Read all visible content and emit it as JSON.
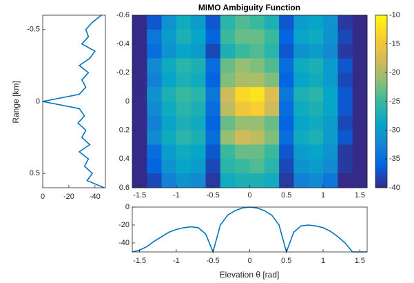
{
  "chart_data": [
    {
      "type": "heatmap",
      "title": "MIMO Ambiguity Function",
      "colormap": "parula",
      "x": [
        -1.5,
        -1.3,
        -1.1,
        -0.9,
        -0.7,
        -0.5,
        -0.3,
        -0.1,
        0.1,
        0.3,
        0.5,
        0.7,
        0.9,
        1.1,
        1.3,
        1.5
      ],
      "y": [
        -0.55,
        -0.45,
        -0.35,
        -0.25,
        -0.15,
        -0.05,
        0.05,
        0.15,
        0.25,
        0.35,
        0.45,
        0.55
      ],
      "z": [
        [
          -40,
          -37,
          -31,
          -28,
          -30,
          -37,
          -26,
          -24,
          -25,
          -27,
          -37,
          -30,
          -29,
          -31,
          -39,
          -40
        ],
        [
          -40,
          -34,
          -30,
          -27,
          -29,
          -36,
          -25,
          -23,
          -23,
          -25,
          -36,
          -29,
          -28,
          -31,
          -38,
          -40
        ],
        [
          -40,
          -35,
          -31,
          -29,
          -30,
          -38,
          -27,
          -25,
          -24,
          -26,
          -37,
          -31,
          -30,
          -32,
          -39,
          -40
        ],
        [
          -40,
          -32,
          -28,
          -26,
          -27,
          -35,
          -23,
          -21,
          -22,
          -24,
          -35,
          -28,
          -27,
          -30,
          -37,
          -40
        ],
        [
          -40,
          -33,
          -29,
          -27,
          -28,
          -36,
          -22,
          -20,
          -20,
          -22,
          -36,
          -29,
          -28,
          -30,
          -38,
          -40
        ],
        [
          -40,
          -31,
          -27,
          -25,
          -26,
          -34,
          -18,
          -13,
          -12,
          -17,
          -34,
          -27,
          -26,
          -29,
          -37,
          -40
        ],
        [
          -40,
          -32,
          -28,
          -26,
          -27,
          -35,
          -19,
          -15,
          -14,
          -18,
          -35,
          -28,
          -27,
          -29,
          -37,
          -40
        ],
        [
          -40,
          -33,
          -29,
          -27,
          -28,
          -36,
          -23,
          -21,
          -21,
          -23,
          -36,
          -29,
          -28,
          -30,
          -38,
          -40
        ],
        [
          -40,
          -32,
          -28,
          -26,
          -27,
          -35,
          -21,
          -18,
          -19,
          -22,
          -35,
          -28,
          -27,
          -30,
          -37,
          -40
        ],
        [
          -40,
          -35,
          -30,
          -28,
          -29,
          -37,
          -25,
          -23,
          -23,
          -25,
          -37,
          -30,
          -29,
          -31,
          -39,
          -40
        ],
        [
          -40,
          -36,
          -31,
          -29,
          -30,
          -38,
          -26,
          -25,
          -24,
          -26,
          -38,
          -31,
          -30,
          -32,
          -39,
          -40
        ],
        [
          -40,
          -38,
          -33,
          -31,
          -32,
          -39,
          -28,
          -27,
          -27,
          -28,
          -39,
          -33,
          -32,
          -34,
          -40,
          -40
        ]
      ],
      "xlim": [
        -1.6,
        1.6
      ],
      "xticks": [
        -1.5,
        -1,
        -0.5,
        0,
        0.5,
        1,
        1.5
      ],
      "ylim": [
        -0.6,
        0.6
      ],
      "yticks": [
        -0.6,
        -0.4,
        -0.2,
        0,
        0.2,
        0.4,
        0.6
      ],
      "clim": [
        -40,
        -10
      ],
      "cticks": [
        -10,
        -15,
        -20,
        -25,
        -30,
        -35,
        -40
      ]
    },
    {
      "type": "line",
      "orientation": "vertical",
      "ylabel": "Range [km]",
      "color": "#0072bd",
      "y": [
        -0.6,
        -0.55,
        -0.5,
        -0.45,
        -0.4,
        -0.35,
        -0.3,
        -0.25,
        -0.2,
        -0.15,
        -0.1,
        -0.05,
        0,
        0.05,
        0.1,
        0.15,
        0.2,
        0.25,
        0.3,
        0.35,
        0.4,
        0.45,
        0.5,
        0.55,
        0.6
      ],
      "values": [
        -45,
        -38,
        -33,
        -35,
        -30,
        -40,
        -36,
        -28,
        -35,
        -30,
        -33,
        -28,
        0,
        -28,
        -32,
        -27,
        -33,
        -30,
        -36,
        -28,
        -35,
        -32,
        -38,
        -34,
        -47
      ],
      "xlim": [
        0,
        -48
      ],
      "xticks": [
        0,
        -20,
        -40
      ],
      "ylim": [
        -0.6,
        0.6
      ],
      "yticks": [
        -0.5,
        0,
        0.5
      ]
    },
    {
      "type": "line",
      "orientation": "horizontal",
      "xlabel": "Elevation θ [rad]",
      "color": "#0072bd",
      "x": [
        -1.6,
        -1.5,
        -1.4,
        -1.3,
        -1.2,
        -1.1,
        -1,
        -0.9,
        -0.8,
        -0.7,
        -0.6,
        -0.5,
        -0.4,
        -0.3,
        -0.2,
        -0.1,
        0,
        0.1,
        0.2,
        0.3,
        0.4,
        0.5,
        0.6,
        0.7,
        0.8,
        0.9,
        1,
        1.1,
        1.2,
        1.3,
        1.4,
        1.5,
        1.6
      ],
      "values": [
        -50,
        -48,
        -44,
        -38,
        -33,
        -28,
        -25,
        -23,
        -22,
        -23,
        -30,
        -50,
        -20,
        -9,
        -4,
        -1,
        0,
        -1,
        -4,
        -9,
        -20,
        -50,
        -28,
        -21,
        -20,
        -21,
        -23,
        -27,
        -33,
        -40,
        -50,
        -50,
        -50
      ],
      "xlim": [
        -1.6,
        1.6
      ],
      "xticks": [
        -1.5,
        -1,
        -0.5,
        0,
        0.5,
        1,
        1.5
      ],
      "ylim": [
        -50,
        0
      ],
      "yticks": [
        -40,
        -20,
        0
      ]
    }
  ]
}
